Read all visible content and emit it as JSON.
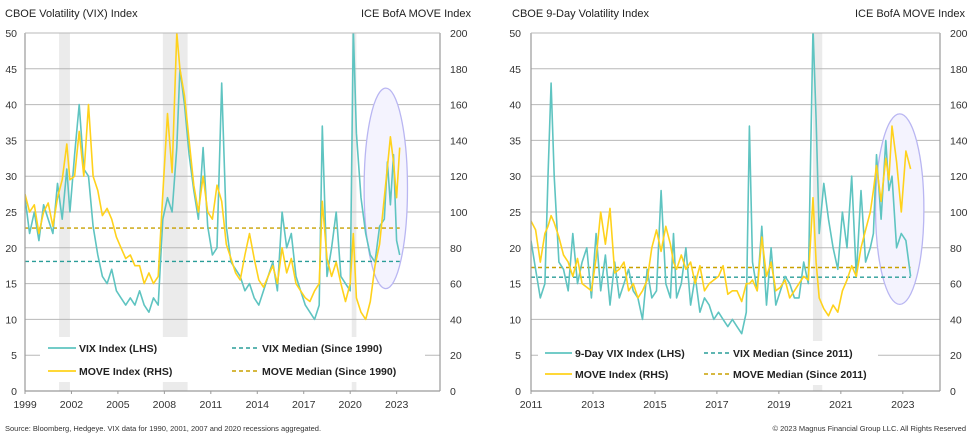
{
  "colors": {
    "vix": "#5fc4c1",
    "move": "#ffd21c",
    "vix_median": "#2a9d98",
    "move_median": "#c8a000",
    "recession": "#ebebeb",
    "ellipse_stroke": "#b9b6f2",
    "ellipse_fill": "#f4f3fe",
    "grid": "#b8b8b8",
    "axis": "#9a9a9a"
  },
  "footer": {
    "source": "Source: Bloomberg, Hedgeye. VIX data for 1990, 2001, 2007 and 2020 recessions aggregated.",
    "copyright": "© 2023 Magnus Financial Group LLC. All Rights Reserved"
  },
  "chart_data": [
    {
      "type": "line",
      "title": "CBOE Volatility (VIX) Index",
      "ylabel": "CBOE Volatility (VIX) Index",
      "ylabel_right": "ICE BofA MOVE Index",
      "xlim": [
        1999,
        2025.8
      ],
      "ylim": [
        0,
        50
      ],
      "ylim_right": [
        0,
        200
      ],
      "x_ticks": [
        "1999",
        "2002",
        "2005",
        "2008",
        "2011",
        "2014",
        "2017",
        "2020",
        "2023"
      ],
      "y_ticks": [
        "0",
        "5",
        "10",
        "15",
        "20",
        "25",
        "30",
        "35",
        "40",
        "45",
        "50"
      ],
      "y_ticks_right": [
        "0",
        "20",
        "40",
        "60",
        "80",
        "100",
        "120",
        "140",
        "160",
        "180",
        "200"
      ],
      "grid": true,
      "legend_position": "bottom-inside",
      "recessions": [
        [
          2001.2,
          2001.9
        ],
        [
          2007.9,
          2009.5
        ],
        [
          2020.1,
          2020.4
        ]
      ],
      "annotation": {
        "type": "ellipse",
        "x_center": 2022.3,
        "y_center": 28.3,
        "x_radius": 1.4,
        "y_radius": 14
      },
      "medians": [
        {
          "name": "VIX Median (Since 1990)",
          "axis": "left",
          "value": 18.1,
          "x_from": 1999,
          "x_to": 2023.2
        },
        {
          "name": "MOVE Median (Since 1990)",
          "axis": "right",
          "value": 91,
          "x_from": 1999,
          "x_to": 2023.2
        }
      ],
      "series": [
        {
          "name": "VIX Index (LHS)",
          "axis": "left",
          "x": [
            1999.0,
            1999.3,
            1999.6,
            1999.9,
            2000.2,
            2000.5,
            2000.8,
            2001.1,
            2001.4,
            2001.7,
            2001.9,
            2002.2,
            2002.5,
            2002.8,
            2003.1,
            2003.4,
            2003.7,
            2004.0,
            2004.3,
            2004.6,
            2004.9,
            2005.2,
            2005.5,
            2005.8,
            2006.1,
            2006.4,
            2006.7,
            2007.0,
            2007.3,
            2007.6,
            2007.9,
            2008.2,
            2008.5,
            2008.8,
            2009.0,
            2009.3,
            2009.6,
            2009.9,
            2010.2,
            2010.5,
            2010.8,
            2011.1,
            2011.4,
            2011.7,
            2012.0,
            2012.3,
            2012.6,
            2012.9,
            2013.2,
            2013.5,
            2013.8,
            2014.1,
            2014.4,
            2014.7,
            2015.0,
            2015.3,
            2015.6,
            2015.9,
            2016.2,
            2016.5,
            2016.8,
            2017.1,
            2017.4,
            2017.7,
            2018.0,
            2018.2,
            2018.5,
            2018.8,
            2019.1,
            2019.4,
            2019.7,
            2020.0,
            2020.2,
            2020.4,
            2020.7,
            2021.0,
            2021.3,
            2021.6,
            2021.9,
            2022.2,
            2022.4,
            2022.6,
            2022.8,
            2023.0,
            2023.2
          ],
          "values": [
            27,
            22,
            25,
            21,
            26,
            24,
            22,
            29,
            24,
            31,
            25,
            33,
            40,
            31,
            30,
            23,
            19,
            16,
            15,
            17,
            14,
            13,
            12,
            13,
            12,
            14,
            12,
            11,
            13,
            12,
            24,
            27,
            25,
            34,
            45,
            40,
            33,
            28,
            24,
            34,
            23,
            19,
            20,
            43,
            23,
            18,
            17,
            16,
            14,
            15,
            13,
            12,
            14,
            16,
            18,
            14,
            25,
            20,
            22,
            16,
            14,
            12,
            11,
            10,
            12,
            37,
            16,
            20,
            25,
            16,
            15,
            14,
            58,
            36,
            27,
            22,
            19,
            18,
            23,
            24,
            32,
            26,
            33,
            21,
            19
          ]
        },
        {
          "name": "MOVE Index (RHS)",
          "axis": "right",
          "x": [
            1999.0,
            1999.3,
            1999.6,
            1999.9,
            2000.2,
            2000.5,
            2000.8,
            2001.1,
            2001.4,
            2001.7,
            2001.9,
            2002.2,
            2002.5,
            2002.8,
            2003.1,
            2003.4,
            2003.7,
            2004.0,
            2004.3,
            2004.6,
            2004.9,
            2005.2,
            2005.5,
            2005.8,
            2006.1,
            2006.4,
            2006.7,
            2007.0,
            2007.3,
            2007.6,
            2007.9,
            2008.2,
            2008.5,
            2008.8,
            2009.0,
            2009.3,
            2009.6,
            2009.9,
            2010.2,
            2010.5,
            2010.8,
            2011.1,
            2011.4,
            2011.7,
            2012.0,
            2012.3,
            2012.6,
            2012.9,
            2013.2,
            2013.5,
            2013.8,
            2014.1,
            2014.4,
            2014.7,
            2015.0,
            2015.3,
            2015.6,
            2015.9,
            2016.2,
            2016.5,
            2016.8,
            2017.1,
            2017.4,
            2017.7,
            2018.0,
            2018.2,
            2018.5,
            2018.8,
            2019.1,
            2019.4,
            2019.7,
            2020.0,
            2020.2,
            2020.4,
            2020.7,
            2021.0,
            2021.3,
            2021.6,
            2021.9,
            2022.2,
            2022.4,
            2022.6,
            2022.8,
            2023.0,
            2023.2
          ],
          "values": [
            110,
            100,
            104,
            88,
            100,
            105,
            92,
            108,
            118,
            138,
            118,
            120,
            145,
            120,
            160,
            120,
            112,
            98,
            102,
            96,
            86,
            80,
            74,
            76,
            70,
            70,
            60,
            66,
            60,
            64,
            110,
            155,
            122,
            200,
            180,
            165,
            140,
            115,
            100,
            120,
            100,
            96,
            115,
            106,
            82,
            74,
            66,
            62,
            76,
            88,
            74,
            62,
            58,
            64,
            70,
            60,
            80,
            66,
            74,
            60,
            56,
            52,
            50,
            56,
            60,
            106,
            74,
            64,
            72,
            60,
            50,
            60,
            88,
            52,
            44,
            40,
            50,
            70,
            82,
            108,
            125,
            142,
            128,
            108,
            136
          ]
        }
      ]
    },
    {
      "type": "line",
      "title": "CBOE 9-Day Volatility Index",
      "ylabel": "CBOE 9-Day Volatility Index",
      "ylabel_right": "ICE BofA MOVE Index",
      "xlim": [
        2011,
        2024.2
      ],
      "ylim": [
        0,
        50
      ],
      "ylim_right": [
        0,
        200
      ],
      "x_ticks": [
        "2011",
        "2013",
        "2015",
        "2017",
        "2019",
        "2021",
        "2023"
      ],
      "y_ticks": [
        "0",
        "5",
        "10",
        "15",
        "20",
        "25",
        "30",
        "35",
        "40",
        "45",
        "50"
      ],
      "y_ticks_right": [
        "0",
        "20",
        "40",
        "60",
        "80",
        "100",
        "120",
        "140",
        "160",
        "180",
        "200"
      ],
      "grid": true,
      "legend_position": "bottom-inside",
      "recessions": [
        [
          2020.1,
          2020.4
        ]
      ],
      "annotation": {
        "type": "ellipse",
        "x_center": 2022.9,
        "y_center": 25.4,
        "x_radius": 0.78,
        "y_radius": 13.3
      },
      "medians": [
        {
          "name": "VIX Median (Since 2011)",
          "axis": "left",
          "value": 15.9,
          "x_from": 2011,
          "x_to": 2023.25
        },
        {
          "name": "MOVE Median (Since 2011)",
          "axis": "right",
          "value": 69,
          "x_from": 2011,
          "x_to": 2023.25
        }
      ],
      "series": [
        {
          "name": "9-Day VIX Index (LHS)",
          "axis": "left",
          "x": [
            2011.0,
            2011.15,
            2011.3,
            2011.45,
            2011.55,
            2011.65,
            2011.75,
            2011.9,
            2012.05,
            2012.2,
            2012.35,
            2012.5,
            2012.65,
            2012.8,
            2012.95,
            2013.1,
            2013.25,
            2013.4,
            2013.55,
            2013.7,
            2013.85,
            2014.0,
            2014.15,
            2014.3,
            2014.45,
            2014.6,
            2014.75,
            2014.9,
            2015.05,
            2015.2,
            2015.35,
            2015.5,
            2015.6,
            2015.7,
            2015.85,
            2016.0,
            2016.15,
            2016.3,
            2016.45,
            2016.6,
            2016.75,
            2016.9,
            2017.05,
            2017.2,
            2017.35,
            2017.5,
            2017.65,
            2017.8,
            2017.95,
            2018.05,
            2018.15,
            2018.3,
            2018.45,
            2018.6,
            2018.75,
            2018.9,
            2019.05,
            2019.2,
            2019.35,
            2019.5,
            2019.65,
            2019.8,
            2019.95,
            2020.1,
            2020.2,
            2020.3,
            2020.45,
            2020.6,
            2020.75,
            2020.9,
            2021.05,
            2021.2,
            2021.35,
            2021.5,
            2021.65,
            2021.8,
            2021.95,
            2022.05,
            2022.15,
            2022.3,
            2022.45,
            2022.55,
            2022.65,
            2022.8,
            2022.95,
            2023.1,
            2023.25
          ],
          "values": [
            21,
            17,
            13,
            15,
            30,
            43,
            30,
            18,
            17,
            14,
            22,
            15,
            18,
            20,
            13,
            22,
            14,
            19,
            12,
            18,
            13,
            15,
            17,
            14,
            13,
            10,
            17,
            13,
            14,
            28,
            15,
            13,
            22,
            13,
            15,
            20,
            12,
            16,
            11,
            13,
            12,
            10,
            11,
            10,
            9,
            10,
            9,
            8,
            11,
            37,
            18,
            14,
            23,
            12,
            20,
            12,
            14,
            16,
            15,
            13,
            13,
            18,
            15,
            55,
            38,
            22,
            29,
            24,
            20,
            17,
            25,
            20,
            30,
            16,
            28,
            18,
            20,
            22,
            33,
            24,
            35,
            28,
            30,
            20,
            22,
            21,
            16
          ]
        },
        {
          "name": "MOVE Index (RHS)",
          "axis": "right",
          "x": [
            2011.0,
            2011.15,
            2011.3,
            2011.45,
            2011.55,
            2011.65,
            2011.75,
            2011.9,
            2012.05,
            2012.2,
            2012.35,
            2012.5,
            2012.65,
            2012.8,
            2012.95,
            2013.1,
            2013.25,
            2013.4,
            2013.55,
            2013.7,
            2013.85,
            2014.0,
            2014.15,
            2014.3,
            2014.45,
            2014.6,
            2014.75,
            2014.9,
            2015.05,
            2015.2,
            2015.35,
            2015.5,
            2015.6,
            2015.7,
            2015.85,
            2016.0,
            2016.15,
            2016.3,
            2016.45,
            2016.6,
            2016.75,
            2016.9,
            2017.05,
            2017.2,
            2017.35,
            2017.5,
            2017.65,
            2017.8,
            2017.95,
            2018.05,
            2018.15,
            2018.3,
            2018.45,
            2018.6,
            2018.75,
            2018.9,
            2019.05,
            2019.2,
            2019.35,
            2019.5,
            2019.65,
            2019.8,
            2019.95,
            2020.1,
            2020.2,
            2020.3,
            2020.45,
            2020.6,
            2020.75,
            2020.9,
            2021.05,
            2021.2,
            2021.35,
            2021.5,
            2021.65,
            2021.8,
            2021.95,
            2022.05,
            2022.15,
            2022.3,
            2022.45,
            2022.55,
            2022.65,
            2022.8,
            2022.95,
            2023.1,
            2023.25
          ],
          "values": [
            95,
            90,
            72,
            88,
            92,
            98,
            94,
            86,
            76,
            72,
            64,
            74,
            60,
            58,
            56,
            74,
            100,
            82,
            102,
            66,
            68,
            72,
            56,
            60,
            52,
            56,
            62,
            80,
            90,
            78,
            92,
            82,
            72,
            68,
            76,
            68,
            72,
            60,
            70,
            56,
            60,
            62,
            64,
            70,
            54,
            56,
            56,
            50,
            60,
            60,
            62,
            56,
            86,
            64,
            72,
            56,
            58,
            62,
            52,
            56,
            60,
            64,
            62,
            108,
            72,
            52,
            46,
            42,
            48,
            44,
            56,
            62,
            70,
            64,
            80,
            90,
            100,
            112,
            126,
            106,
            130,
            118,
            148,
            128,
            100,
            134,
            124
          ]
        }
      ]
    }
  ]
}
